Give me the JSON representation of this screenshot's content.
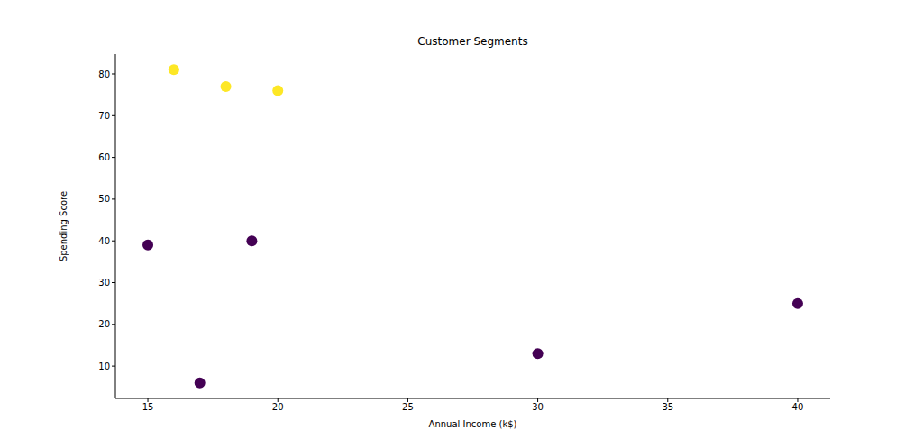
{
  "chart_data": {
    "type": "scatter",
    "title": "Customer Segments",
    "x_label": "Annual Income (k$)",
    "y_label": "Spending Score",
    "series": [
      {
        "color": "#fde725",
        "x": [
          16,
          18,
          20
        ],
        "values": [
          81,
          77,
          76
        ]
      },
      {
        "color": "#440154",
        "x": [
          15,
          19,
          17,
          30,
          40
        ],
        "values": [
          39,
          40,
          6,
          13,
          25
        ]
      }
    ],
    "xlim": [
      13.75,
      41.25
    ],
    "xticks": [
      15,
      20,
      25,
      30,
      35,
      40
    ],
    "ylim": [
      2.25,
      84.75
    ],
    "yticks": [
      10,
      20,
      30,
      40,
      50,
      60,
      70,
      80
    ],
    "grid": false
  }
}
